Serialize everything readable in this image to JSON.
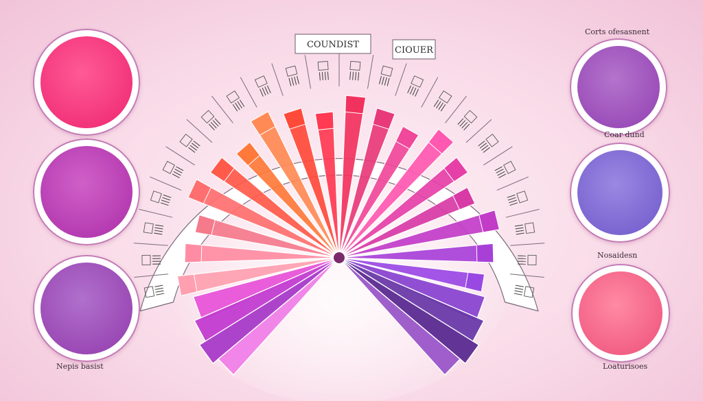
{
  "diagram": {
    "arc_labels": {
      "top_center": "COUNDIST",
      "top_right": "CIOUER"
    },
    "swatches_left": [
      {
        "name": "pink",
        "color": "#f2327a",
        "inner": "#ff5a95"
      },
      {
        "name": "magenta",
        "color": "#b43ab0",
        "inner": "#d060c8"
      },
      {
        "name": "purple",
        "color": "#9a48b4",
        "inner": "#b070cc"
      }
    ],
    "swatches_right": [
      {
        "name": "lavender",
        "color": "#9a4cb8",
        "inner": "#b474cc",
        "caption": "Corts ofesasnent"
      },
      {
        "name": "periwinkle",
        "color": "#7a64d0",
        "inner": "#9a88e2",
        "caption": "Coar dund"
      },
      {
        "name": "coral",
        "color": "#f25e84",
        "inner": "#ff8aa4",
        "caption": "Nosaidesn"
      }
    ],
    "bottom_captions": {
      "left": "Nepis basist",
      "right": "Loaturisoes"
    },
    "fan_colors": [
      "#ff9fb0",
      "#ff8ca2",
      "#f47a8c",
      "#ff6f6f",
      "#ff5a4a",
      "#ff7a3a",
      "#ff8a55",
      "#ff4a3a",
      "#ff3a52",
      "#f2325e",
      "#e83a7a",
      "#f0489a",
      "#ff58b0",
      "#e640a8",
      "#d83aa6",
      "#c23cc8",
      "#a840d8",
      "#9a48e4",
      "#8a44cc",
      "#7a3ab8",
      "#c040d0",
      "#e060e0"
    ]
  }
}
